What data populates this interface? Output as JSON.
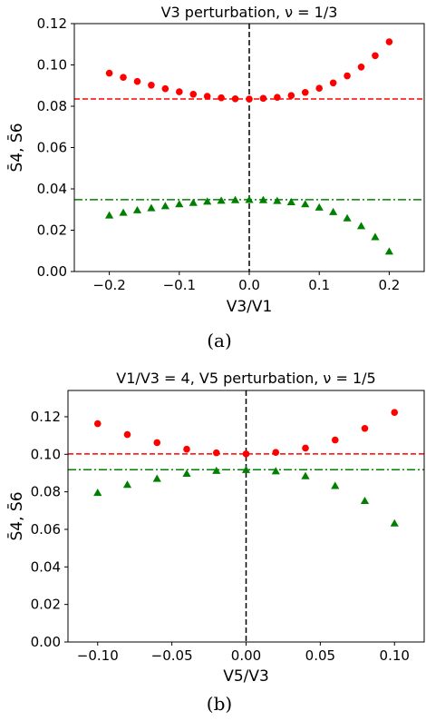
{
  "chart_data": [
    {
      "type": "scatter",
      "title": "V3 perturbation, ν = 1/3",
      "xlabel": "V3/V1",
      "ylabel": "S̄4, S̄6",
      "caption": "(a)",
      "xlim": [
        -0.25,
        0.25
      ],
      "ylim": [
        0.0,
        0.12
      ],
      "xticks": [
        -0.2,
        -0.1,
        0.0,
        0.1,
        0.2
      ],
      "xtick_labels": [
        "−0.2",
        "−0.1",
        "0.0",
        "0.1",
        "0.2"
      ],
      "yticks": [
        0.0,
        0.02,
        0.04,
        0.06,
        0.08,
        0.1,
        0.12
      ],
      "ytick_labels": [
        "0.00",
        "0.02",
        "0.04",
        "0.06",
        "0.08",
        "0.10",
        "0.12"
      ],
      "vline_x": 0.0,
      "hlines": [
        {
          "y": 0.0835,
          "color": "#ff0000",
          "style": "dashed"
        },
        {
          "y": 0.0348,
          "color": "#008000",
          "style": "dashdot"
        }
      ],
      "series": [
        {
          "marker": "circle",
          "color": "#ff0000",
          "x": [
            -0.2,
            -0.18,
            -0.16,
            -0.14,
            -0.12,
            -0.1,
            -0.08,
            -0.06,
            -0.04,
            -0.02,
            0.0,
            0.02,
            0.04,
            0.06,
            0.08,
            0.1,
            0.12,
            0.14,
            0.16,
            0.18,
            0.2
          ],
          "y": [
            0.096,
            0.094,
            0.092,
            0.0902,
            0.0885,
            0.087,
            0.0858,
            0.0848,
            0.0841,
            0.0836,
            0.0835,
            0.0838,
            0.0843,
            0.0852,
            0.0867,
            0.0887,
            0.0913,
            0.0947,
            0.099,
            0.1045,
            0.1112
          ]
        },
        {
          "marker": "triangle",
          "color": "#008000",
          "x": [
            -0.2,
            -0.18,
            -0.16,
            -0.14,
            -0.12,
            -0.1,
            -0.08,
            -0.06,
            -0.04,
            -0.02,
            0.0,
            0.02,
            0.04,
            0.06,
            0.08,
            0.1,
            0.12,
            0.14,
            0.16,
            0.18,
            0.2
          ],
          "y": [
            0.0272,
            0.0285,
            0.0297,
            0.0307,
            0.0317,
            0.0326,
            0.0333,
            0.0339,
            0.0343,
            0.0346,
            0.0347,
            0.0346,
            0.0342,
            0.0336,
            0.0326,
            0.031,
            0.0288,
            0.0258,
            0.022,
            0.0167,
            0.0097
          ]
        }
      ]
    },
    {
      "type": "scatter",
      "title": "V1/V3 = 4, V5 perturbation, ν = 1/5",
      "xlabel": "V5/V3",
      "ylabel": "S̄4, S̄6",
      "caption": "(b)",
      "xlim": [
        -0.12,
        0.12
      ],
      "ylim": [
        0.0,
        0.134
      ],
      "xticks": [
        -0.1,
        -0.05,
        0.0,
        0.05,
        0.1
      ],
      "xtick_labels": [
        "−0.10",
        "−0.05",
        "0.00",
        "0.05",
        "0.10"
      ],
      "yticks": [
        0.0,
        0.02,
        0.04,
        0.06,
        0.08,
        0.1,
        0.12
      ],
      "ytick_labels": [
        "0.00",
        "0.02",
        "0.04",
        "0.06",
        "0.08",
        "0.10",
        "0.12"
      ],
      "vline_x": 0.0,
      "hlines": [
        {
          "y": 0.1002,
          "color": "#ff0000",
          "style": "dashed"
        },
        {
          "y": 0.0918,
          "color": "#008000",
          "style": "dashdot"
        }
      ],
      "series": [
        {
          "marker": "circle",
          "color": "#ff0000",
          "x": [
            -0.1,
            -0.08,
            -0.06,
            -0.04,
            -0.02,
            0.0,
            0.02,
            0.04,
            0.06,
            0.08,
            0.1
          ],
          "y": [
            0.1163,
            0.1105,
            0.1062,
            0.1027,
            0.1008,
            0.1002,
            0.101,
            0.1033,
            0.1076,
            0.1138,
            0.1223
          ]
        },
        {
          "marker": "triangle",
          "color": "#008000",
          "x": [
            -0.1,
            -0.08,
            -0.06,
            -0.04,
            -0.02,
            0.0,
            0.02,
            0.04,
            0.06,
            0.08,
            0.1
          ],
          "y": [
            0.0795,
            0.0838,
            0.087,
            0.0897,
            0.0912,
            0.0917,
            0.091,
            0.0884,
            0.0832,
            0.0752,
            0.0632
          ]
        }
      ]
    }
  ]
}
